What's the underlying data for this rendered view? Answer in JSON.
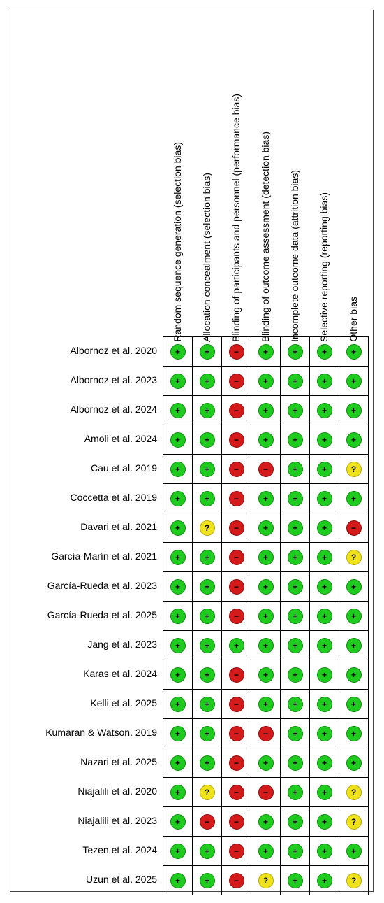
{
  "domains": [
    "Random sequence generation (selection bias)",
    "Allocation concealment (selection bias)",
    "Blinding of participants and personnel (performance bias)",
    "Blinding of outcome assessment (detection bias)",
    "Incomplete outcome data (attrition bias)",
    "Selective reporting (reporting bias)",
    "Other bias"
  ],
  "symbols": {
    "low": "+",
    "high": "−",
    "unclear": "?"
  },
  "colors": {
    "low": "#1ecb1e",
    "high": "#d41a1a",
    "unclear": "#f0e21a"
  },
  "studies": [
    {
      "name": "Albornoz et al. 2020",
      "ratings": [
        "low",
        "low",
        "high",
        "low",
        "low",
        "low",
        "low"
      ]
    },
    {
      "name": "Albornoz et al. 2023",
      "ratings": [
        "low",
        "low",
        "high",
        "low",
        "low",
        "low",
        "low"
      ]
    },
    {
      "name": "Albornoz et al. 2024",
      "ratings": [
        "low",
        "low",
        "high",
        "low",
        "low",
        "low",
        "low"
      ]
    },
    {
      "name": "Amoli et al. 2024",
      "ratings": [
        "low",
        "low",
        "high",
        "low",
        "low",
        "low",
        "low"
      ]
    },
    {
      "name": "Cau et al. 2019",
      "ratings": [
        "low",
        "low",
        "high",
        "high",
        "low",
        "low",
        "unclear"
      ]
    },
    {
      "name": "Coccetta et al. 2019",
      "ratings": [
        "low",
        "low",
        "high",
        "low",
        "low",
        "low",
        "low"
      ]
    },
    {
      "name": "Davari et al. 2021",
      "ratings": [
        "low",
        "unclear",
        "high",
        "low",
        "low",
        "low",
        "high"
      ]
    },
    {
      "name": "García-Marín et al. 2021",
      "ratings": [
        "low",
        "low",
        "high",
        "low",
        "low",
        "low",
        "unclear"
      ]
    },
    {
      "name": "García-Rueda et al. 2023",
      "ratings": [
        "low",
        "low",
        "high",
        "low",
        "low",
        "low",
        "low"
      ]
    },
    {
      "name": "García-Rueda et al. 2025",
      "ratings": [
        "low",
        "low",
        "high",
        "low",
        "low",
        "low",
        "low"
      ]
    },
    {
      "name": "Jang et al. 2023",
      "ratings": [
        "low",
        "low",
        "low",
        "low",
        "low",
        "low",
        "low"
      ]
    },
    {
      "name": "Karas et al. 2024",
      "ratings": [
        "low",
        "low",
        "high",
        "low",
        "low",
        "low",
        "low"
      ]
    },
    {
      "name": "Kelli et al. 2025",
      "ratings": [
        "low",
        "low",
        "high",
        "low",
        "low",
        "low",
        "low"
      ]
    },
    {
      "name": "Kumaran & Watson. 2019",
      "ratings": [
        "low",
        "low",
        "high",
        "high",
        "low",
        "low",
        "low"
      ]
    },
    {
      "name": "Nazari et al. 2025",
      "ratings": [
        "low",
        "low",
        "high",
        "low",
        "low",
        "low",
        "low"
      ]
    },
    {
      "name": "Niajalili et al. 2020",
      "ratings": [
        "low",
        "unclear",
        "high",
        "high",
        "low",
        "low",
        "unclear"
      ]
    },
    {
      "name": "Niajalili et al. 2023",
      "ratings": [
        "low",
        "high",
        "high",
        "low",
        "low",
        "low",
        "unclear"
      ]
    },
    {
      "name": "Tezen et al. 2024",
      "ratings": [
        "low",
        "low",
        "high",
        "low",
        "low",
        "low",
        "low"
      ]
    },
    {
      "name": "Uzun et al. 2025",
      "ratings": [
        "low",
        "low",
        "high",
        "unclear",
        "low",
        "low",
        "unclear"
      ]
    }
  ]
}
